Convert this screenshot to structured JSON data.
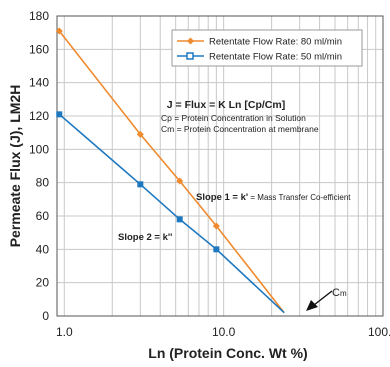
{
  "chart_data": {
    "type": "line",
    "xscale": "log",
    "xlim": [
      0.9,
      100.0
    ],
    "ylim": [
      0,
      180
    ],
    "xticks": [
      "1.0",
      "10.0",
      "100.0"
    ],
    "yticks": [
      "0",
      "20",
      "40",
      "60",
      "80",
      "100",
      "120",
      "140",
      "160",
      "180"
    ],
    "xlabel": "Ln (Protein Conc. Wt %)",
    "ylabel": "Permeate Flux (J), LM2H",
    "grid": "both",
    "legend_position": "top-right",
    "series": [
      {
        "name": "Retentate Flow Rate: 80 ml/min",
        "color": "#f08a2e",
        "marker": "diamond",
        "points": [
          [
            0.93,
            171
          ],
          [
            3.0,
            109
          ],
          [
            5.3,
            81
          ],
          [
            9.0,
            54
          ],
          [
            24.0,
            2
          ]
        ]
      },
      {
        "name": "Retentate Flow Rate: 50 ml/min",
        "color": "#1e78c0",
        "marker": "square",
        "points": [
          [
            0.93,
            121
          ],
          [
            3.0,
            79
          ],
          [
            5.3,
            58
          ],
          [
            9.0,
            40
          ],
          [
            24.0,
            2
          ]
        ]
      }
    ],
    "annotations": {
      "formula": "J = Flux = K Ln [Cp/Cm]",
      "cp_def": "Cp = Protein Concentration in Solution",
      "cm_def": "Cm = Protein Concentration at membrane",
      "slope1_bold": "Slope 1 = k'",
      "slope1_rest": " = Mass Transfer Co-efficient",
      "slope2": "Slope 2 = k''",
      "cm_label_c": "C",
      "cm_label_m": "m"
    }
  }
}
